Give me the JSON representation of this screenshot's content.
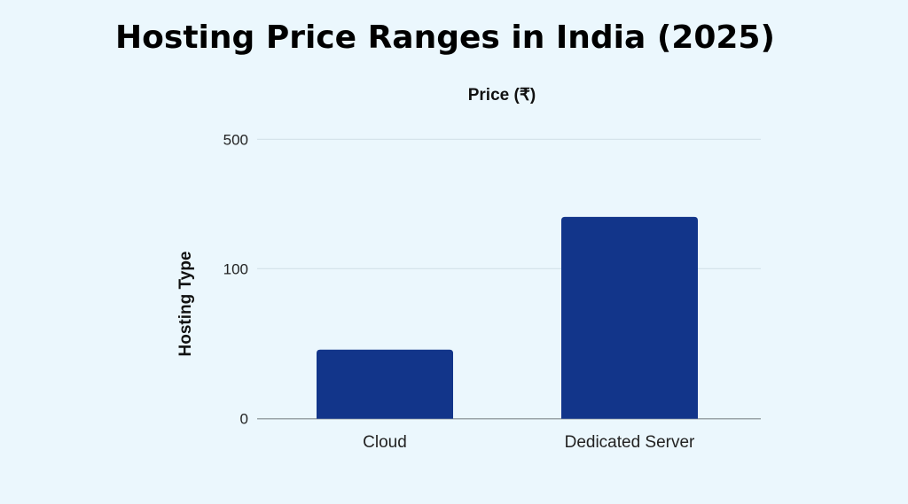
{
  "chart_data": {
    "type": "bar",
    "title": "Hosting Price Ranges in India (2025)",
    "top_label": "Price (₹)",
    "ylabel": "Hosting Type",
    "xlabel": "",
    "categories": [
      "Cloud",
      "Dedicated Server"
    ],
    "values": [
      46,
      260
    ],
    "y_ticks": [
      0,
      100,
      500
    ],
    "y_tick_labels": [
      "0",
      "100",
      "500"
    ],
    "ylim": [
      0,
      500
    ],
    "grid": true,
    "legend": "none",
    "colors": {
      "bar": "#12358a",
      "background": "#ebf7fd",
      "grid": "#d3e2e8",
      "baseline": "#9aa4a8"
    }
  }
}
